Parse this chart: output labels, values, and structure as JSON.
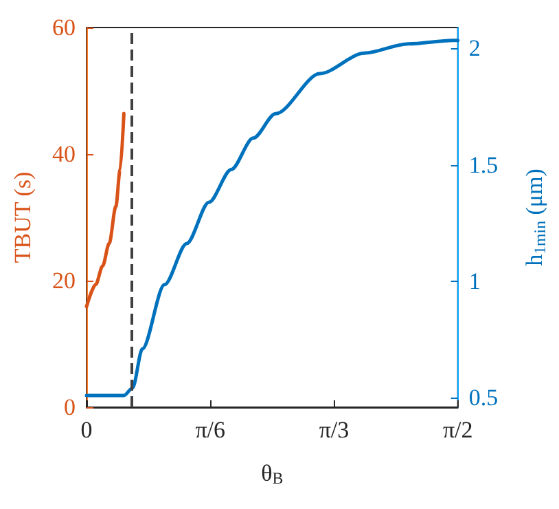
{
  "chart_data": {
    "type": "line",
    "xlabel": "θ$_{B}$",
    "ylabel": "TBUT (s)",
    "y2label": "h$_{1min}$ (μm)",
    "xlim": [
      0,
      1.5708
    ],
    "xticks": [
      {
        "value": 0,
        "label": "0"
      },
      {
        "value": 0.5236,
        "label": "π/6"
      },
      {
        "value": 1.0472,
        "label": "π/3"
      },
      {
        "value": 1.5708,
        "label": "π/2"
      }
    ],
    "ylim": [
      0,
      60
    ],
    "yticks": [
      0,
      20,
      40,
      60
    ],
    "y2lim": [
      0.46,
      2.09
    ],
    "y2ticks": [
      0.5,
      1,
      1.5,
      2
    ],
    "grid": false,
    "marker": "none",
    "line_style": "solid",
    "ref_lines": [
      {
        "axis": "x",
        "value": 0.19,
        "color": "#404040",
        "line_style": "dashed"
      }
    ],
    "series": [
      {
        "color": "#d95319",
        "x": [
          0,
          0.039,
          0.068,
          0.096,
          0.124,
          0.142,
          0.158
        ],
        "values": [
          15.9,
          19.4,
          22.3,
          25.9,
          31.7,
          37.5,
          46.4
        ]
      },
      {
        "color": "#0072bd",
        "axis": "y2",
        "x": [
          0,
          0.158,
          0.195,
          0.236,
          0.33,
          0.424,
          0.518,
          0.612,
          0.705,
          0.8,
          0.987,
          1.175,
          1.362,
          1.55,
          1.5708
        ],
        "values": [
          0.51,
          0.51,
          0.543,
          0.71,
          0.986,
          1.163,
          1.34,
          1.48,
          1.615,
          1.72,
          1.892,
          1.98,
          2.02,
          2.035,
          2.035
        ]
      }
    ]
  }
}
